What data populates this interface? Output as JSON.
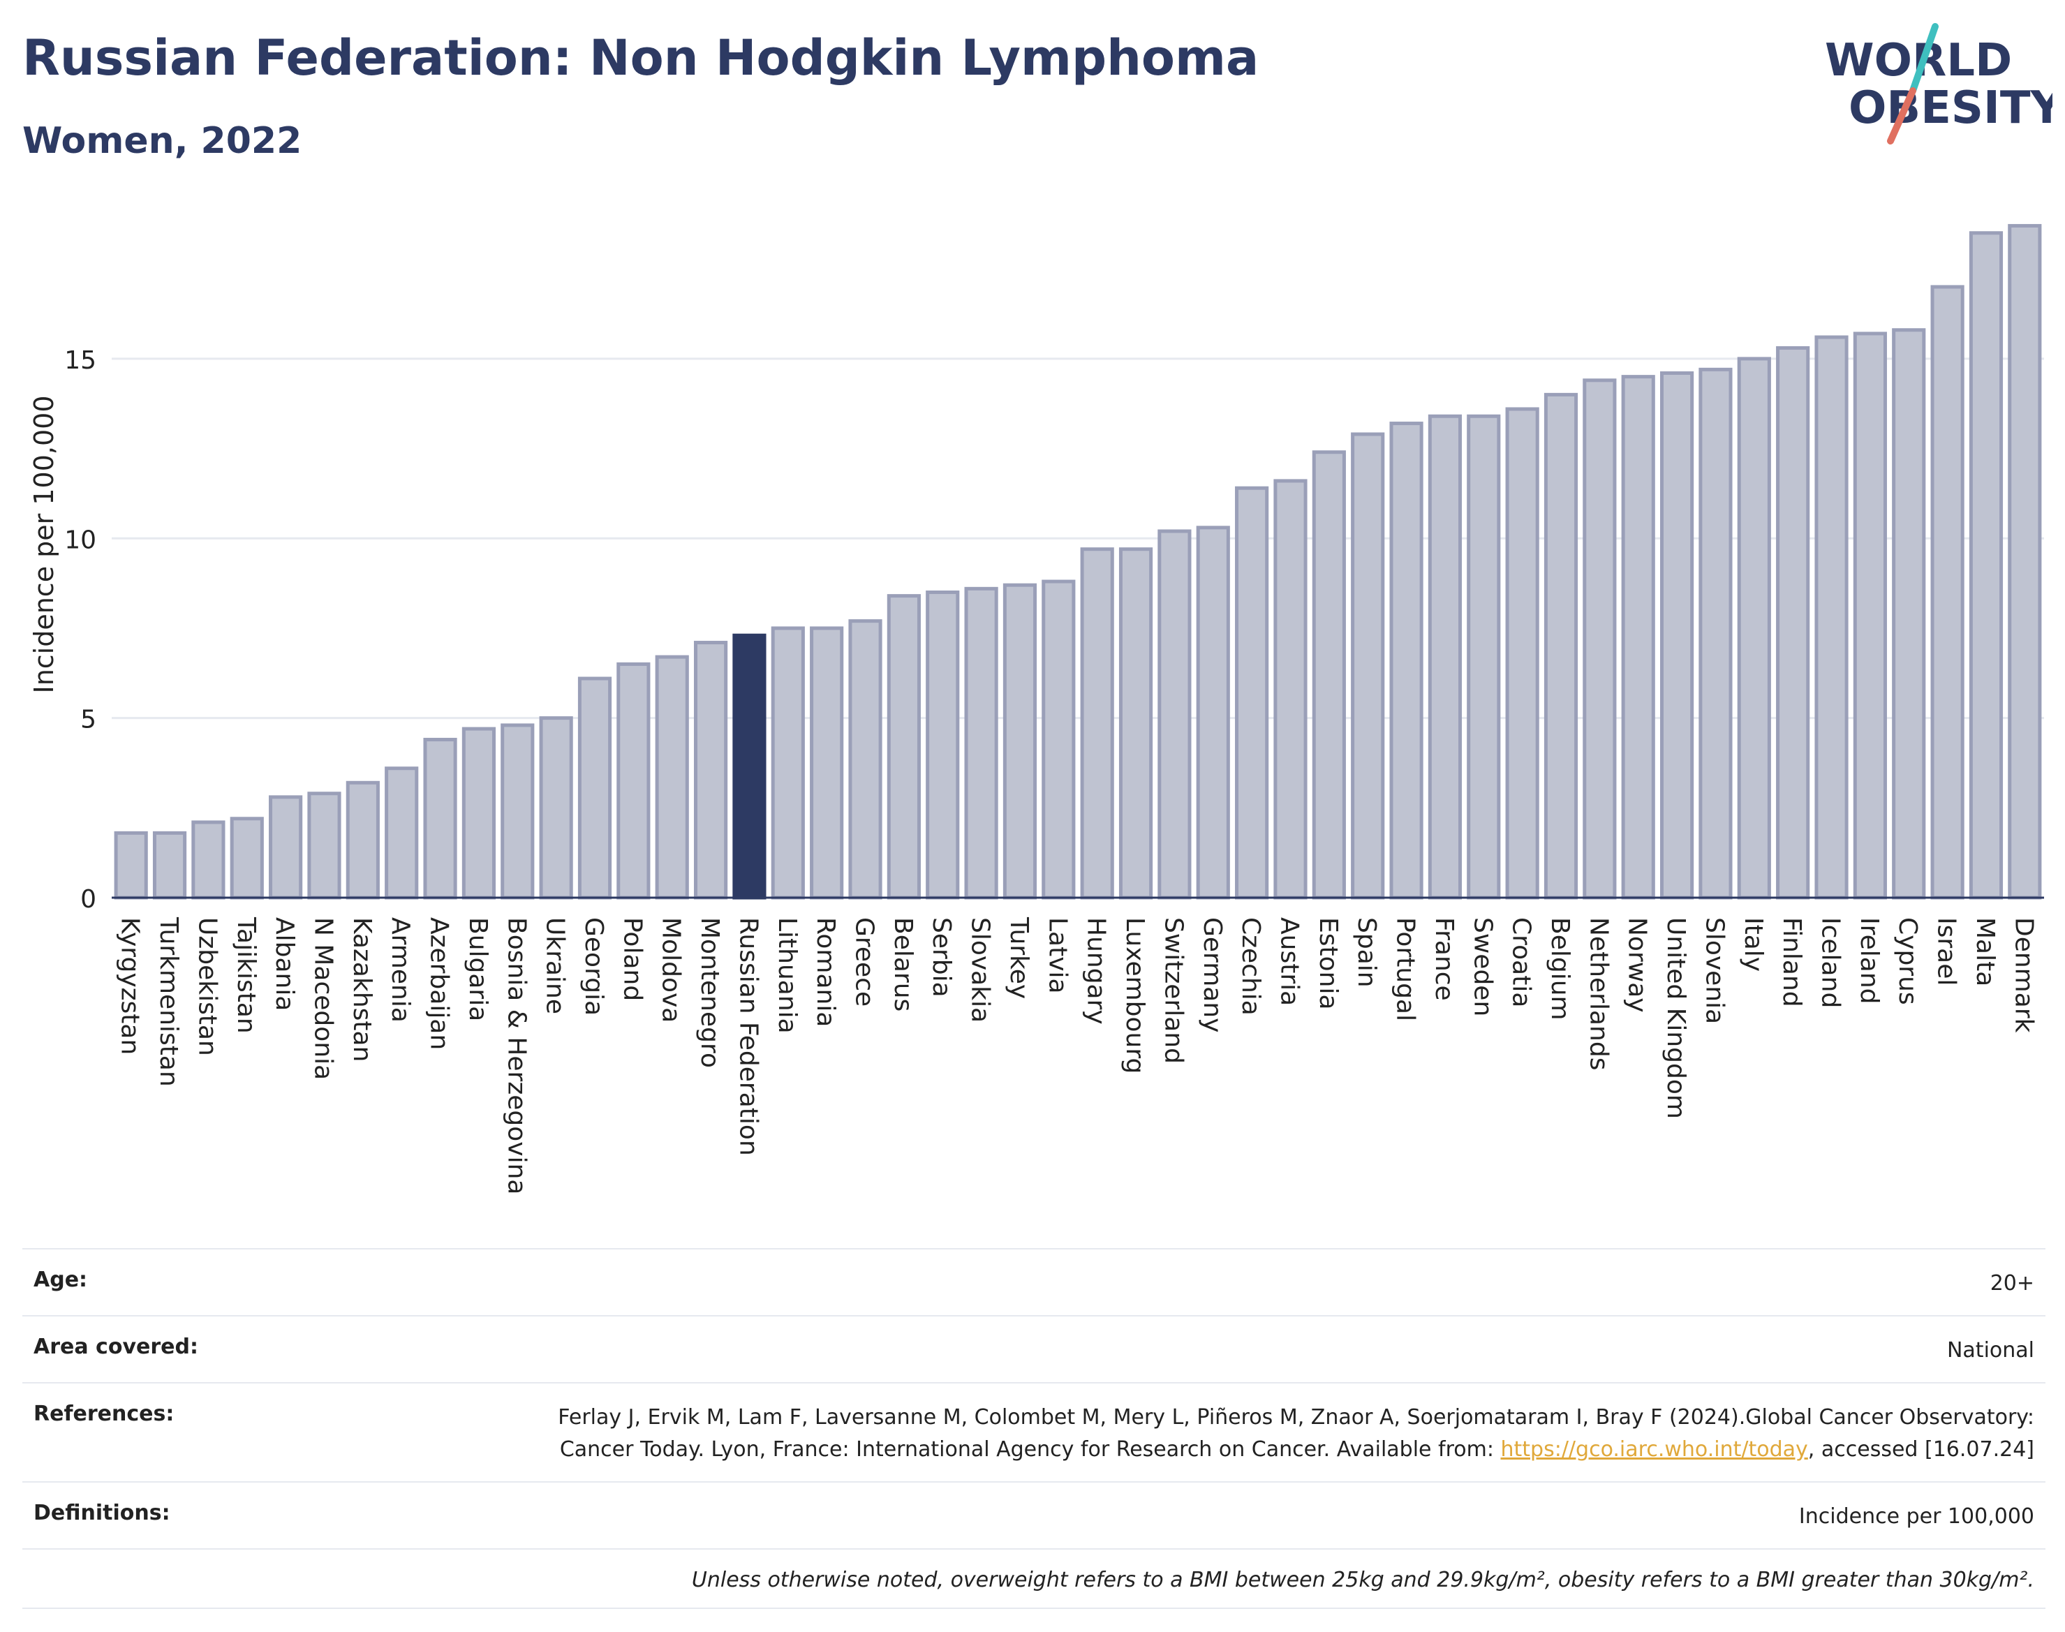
{
  "header": {
    "title": "Russian Federation: Non Hodgkin Lymphoma",
    "subtitle": "Women, 2022"
  },
  "logo": {
    "line1": "WORLD",
    "line2": "OBESITY"
  },
  "colors": {
    "bar": "#bfc3d1",
    "bar_border": "#9a9fb8",
    "highlight": "#2d3a63",
    "text": "#2d3a63",
    "logo_teal": "#3fbfbf",
    "logo_coral": "#e07060"
  },
  "chart_data": {
    "type": "bar",
    "ylabel": "Incidence per 100,000",
    "ylim": [
      0,
      19
    ],
    "yticks": [
      0,
      5,
      10,
      15
    ],
    "grid": true,
    "highlight": "Russian Federation",
    "categories": [
      "Kyrgyzstan",
      "Turkmenistan",
      "Uzbekistan",
      "Tajikistan",
      "Albania",
      "N Macedonia",
      "Kazakhstan",
      "Armenia",
      "Azerbaijan",
      "Bulgaria",
      "Bosnia & Herzegovina",
      "Ukraine",
      "Georgia",
      "Poland",
      "Moldova",
      "Montenegro",
      "Russian Federation",
      "Lithuania",
      "Romania",
      "Greece",
      "Belarus",
      "Serbia",
      "Slovakia",
      "Turkey",
      "Latvia",
      "Hungary",
      "Luxembourg",
      "Switzerland",
      "Germany",
      "Czechia",
      "Austria",
      "Estonia",
      "Spain",
      "Portugal",
      "France",
      "Sweden",
      "Croatia",
      "Belgium",
      "Netherlands",
      "Norway",
      "United Kingdom",
      "Slovenia",
      "Italy",
      "Finland",
      "Iceland",
      "Ireland",
      "Cyprus",
      "Israel",
      "Malta",
      "Denmark"
    ],
    "values": [
      1.8,
      1.8,
      2.1,
      2.2,
      2.8,
      2.9,
      3.2,
      3.6,
      4.4,
      4.7,
      4.8,
      5.0,
      6.1,
      6.5,
      6.7,
      7.1,
      7.3,
      7.5,
      7.5,
      7.7,
      8.4,
      8.5,
      8.6,
      8.7,
      8.8,
      9.7,
      9.7,
      10.2,
      10.3,
      11.4,
      11.6,
      12.4,
      12.9,
      13.2,
      13.4,
      13.4,
      13.6,
      14.0,
      14.4,
      14.5,
      14.6,
      14.7,
      15.0,
      15.3,
      15.6,
      15.7,
      15.8,
      17.0,
      18.5,
      18.7
    ]
  },
  "meta": {
    "rows": [
      {
        "label": "Age:",
        "value": "20+"
      },
      {
        "label": "Area covered:",
        "value": "National"
      },
      {
        "label": "References:",
        "value": "Ferlay J, Ervik M, Lam F, Laversanne M, Colombet M, Mery L, Piñeros M, Znaor A, Soerjomataram I, Bray F (2024).Global Cancer Observatory: Cancer Today. Lyon, France: International Agency for Research on Cancer. Available from: ",
        "link": "https://gco.iarc.who.int/today",
        "suffix": ", accessed [16.07.24]"
      },
      {
        "label": "Definitions:",
        "value": "Incidence per 100,000"
      }
    ],
    "note": "Unless otherwise noted, overweight refers to a BMI between 25kg and 29.9kg/m², obesity refers to a BMI greater than 30kg/m²."
  }
}
